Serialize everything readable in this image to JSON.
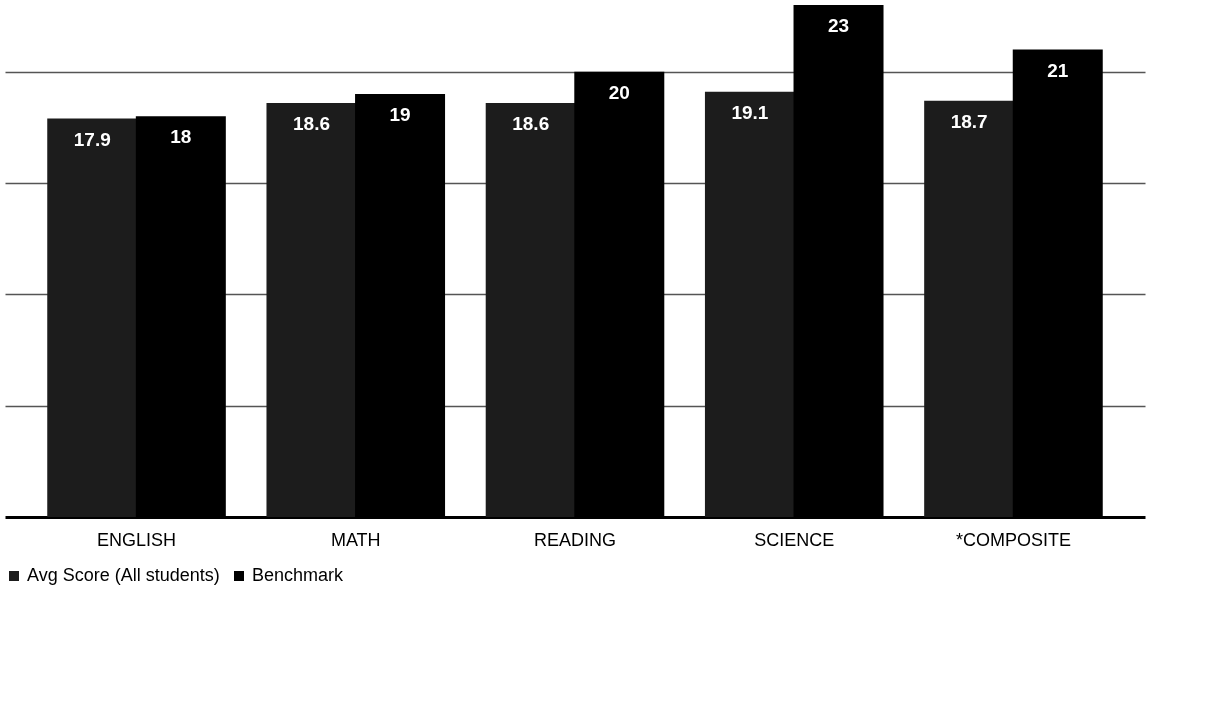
{
  "chart_data": {
    "type": "bar",
    "categories": [
      "ENGLISH",
      "MATH",
      "READING",
      "SCIENCE",
      "*COMPOSITE"
    ],
    "series": [
      {
        "name": "Avg Score (All students)",
        "color": "#1c1c1c",
        "values": [
          17.9,
          18.6,
          18.6,
          19.1,
          18.7
        ]
      },
      {
        "name": "Benchmark",
        "color": "#000000",
        "values": [
          18,
          19,
          20,
          23,
          21
        ]
      }
    ],
    "ylim": [
      0,
      23
    ],
    "yticks": [
      {
        "value": 5,
        "label": null
      },
      {
        "value": 10,
        "label": null
      },
      {
        "value": 15,
        "label": null
      },
      {
        "value": 20,
        "label": null
      }
    ],
    "tick_labels": "x",
    "grid": "y",
    "legend": "bottom",
    "data_labels": true
  }
}
